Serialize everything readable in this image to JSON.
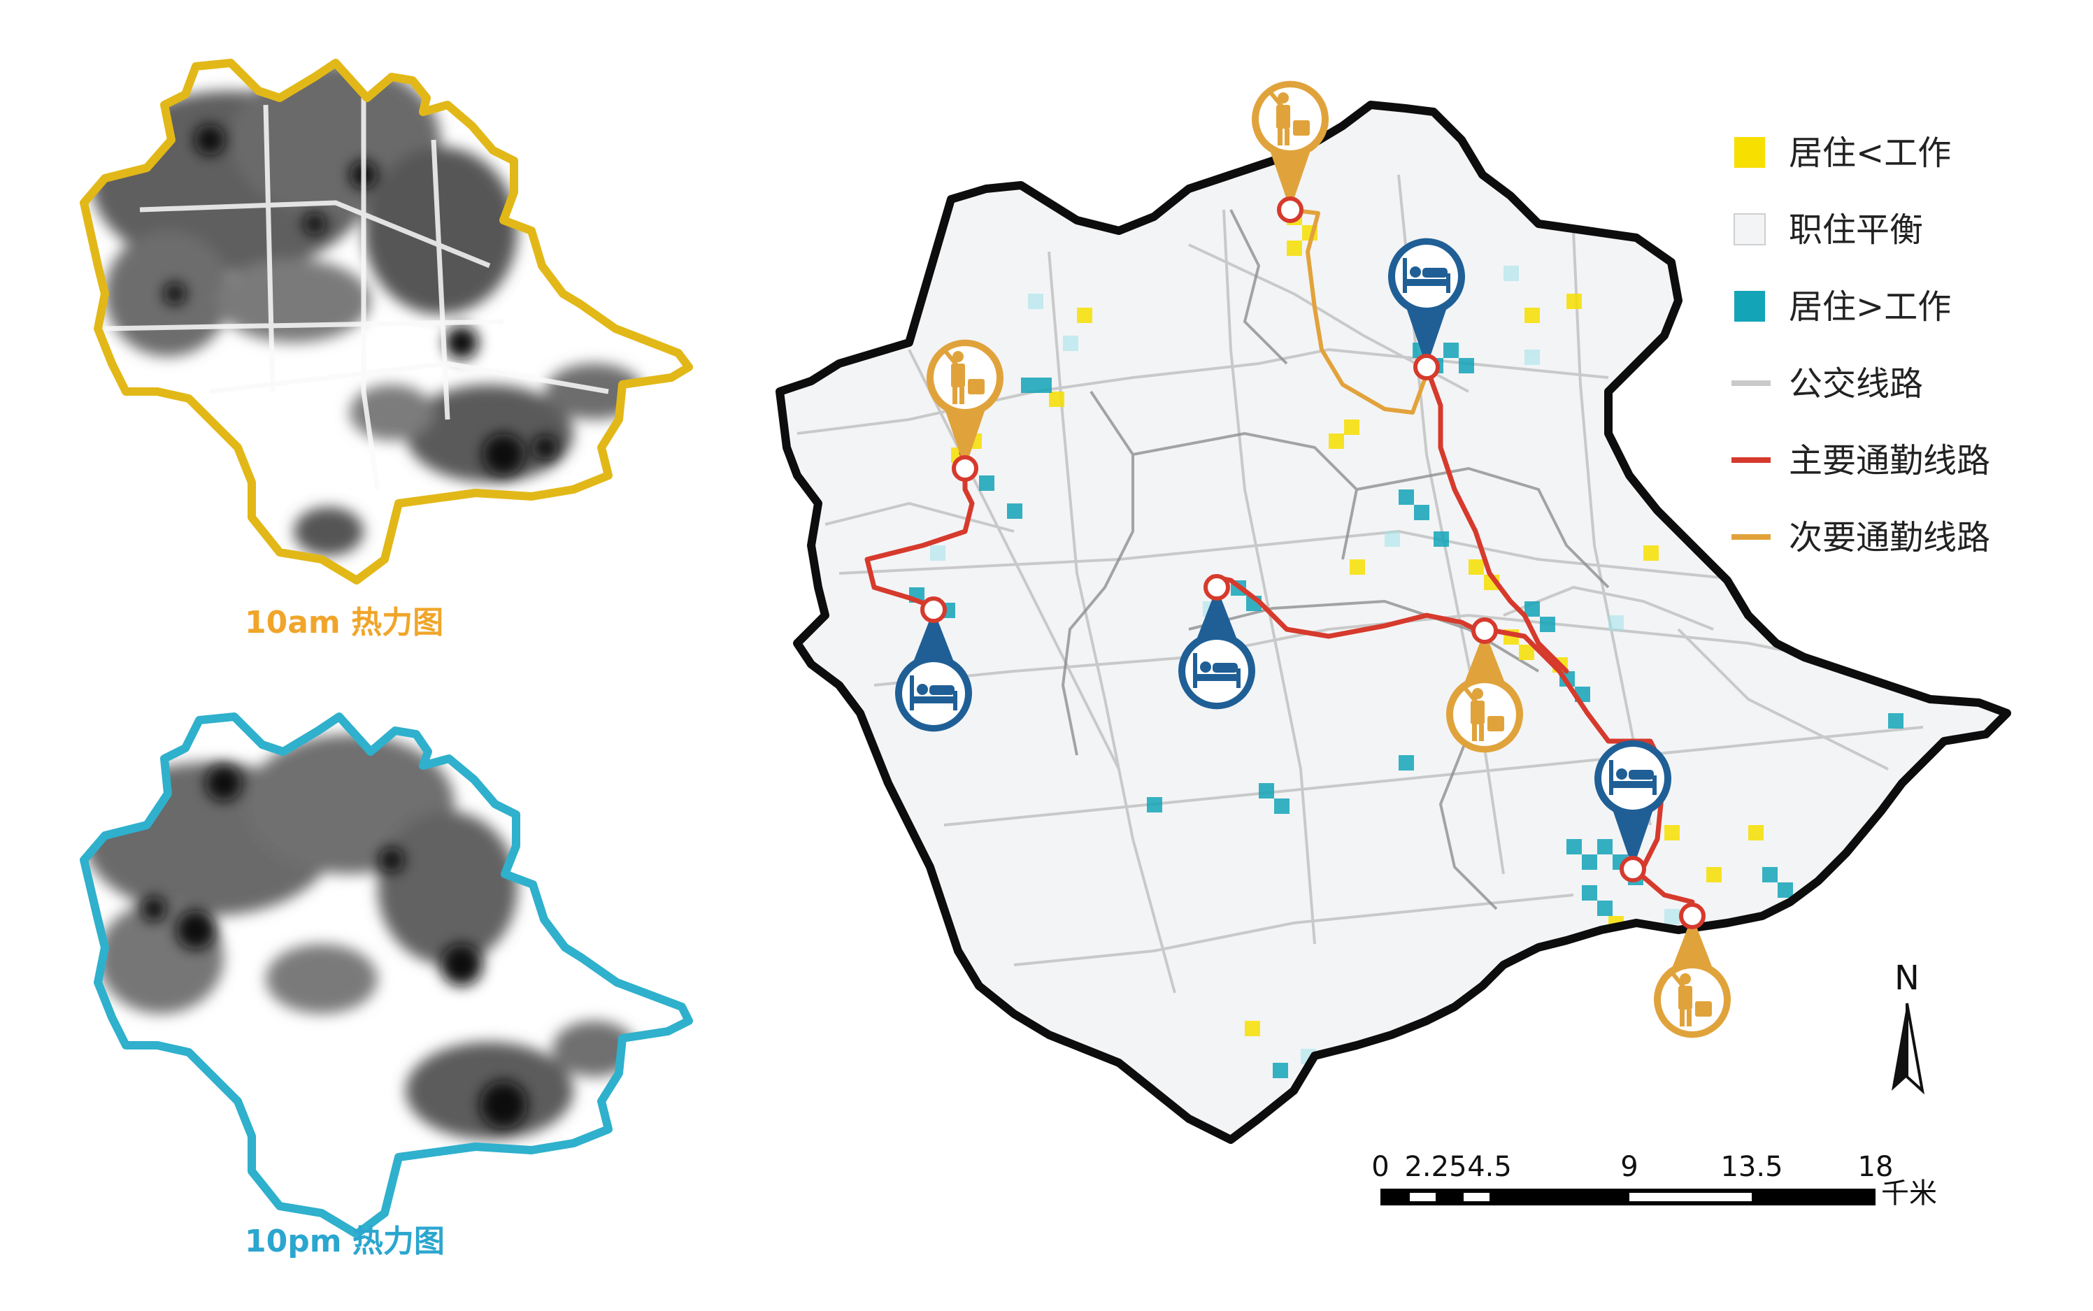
{
  "small_maps": [
    {
      "caption": "10am 热力图",
      "border_color": "#e2b818",
      "caption_color": "#f0a52a"
    },
    {
      "caption": "10pm 热力图",
      "border_color": "#2fb0cc",
      "caption_color": "#2aa6cf"
    }
  ],
  "legend": {
    "items": [
      {
        "label": "居住<工作",
        "kind": "swatch",
        "color": "#f7df00"
      },
      {
        "label": "职住平衡",
        "kind": "swatch",
        "color": "#f3f4f6"
      },
      {
        "label": "居住>工作",
        "kind": "swatch",
        "color": "#13a4b8"
      },
      {
        "label": "公交线路",
        "kind": "line",
        "color": "#c9c9c9"
      },
      {
        "label": "主要通勤线路",
        "kind": "line",
        "color": "#d63a2c"
      },
      {
        "label": "次要通勤线路",
        "kind": "line",
        "color": "#e2a23b"
      }
    ]
  },
  "markers": [
    {
      "type": "work",
      "icon": "worker-icon",
      "color": "#e0a33b"
    },
    {
      "type": "home",
      "icon": "bed-icon",
      "color": "#1f5f96"
    }
  ],
  "scale_bar": {
    "ticks": [
      "0",
      "2.25",
      "4.5",
      "9",
      "13.5",
      "18"
    ],
    "unit": "千米"
  },
  "north_arrow": {
    "label": "N"
  }
}
